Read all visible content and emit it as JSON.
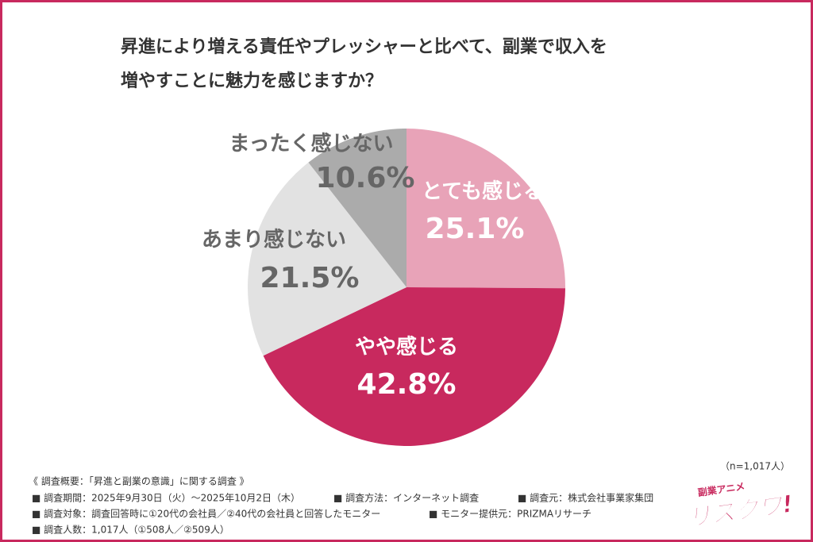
{
  "chart_data": {
    "type": "pie",
    "title_lines": [
      "昇進により増える責任やプレッシャーと比べて、副業で収入を",
      "増やすことに魅力を感じますか？"
    ],
    "categories": [
      "とても感じる",
      "やや感じる",
      "あまり感じない",
      "まったく感じない"
    ],
    "values": [
      25.1,
      42.8,
      21.5,
      10.6
    ],
    "value_labels": [
      "25.1%",
      "42.8%",
      "21.5%",
      "10.6%"
    ],
    "colors": [
      "#e8a3b8",
      "#c8295e",
      "#e2e2e2",
      "#ababab"
    ],
    "label_colors": [
      "#ffffff",
      "#ffffff",
      "#666666",
      "#666666"
    ],
    "sample_note": "（n=1,017人）"
  },
  "footer": {
    "heading": "《 調査概要：「昇進と副業の意識」に関する調査 》",
    "rows": [
      [
        "■ 調査期間：2025年9月30日（火）～2025年10月2日（木）",
        "■ 調査方法：インターネット調査",
        "■ 調査元：株式会社事業家集団"
      ],
      [
        "■ 調査対象：調査回答時に①20代の会社員／②40代の会社員と回答したモニター",
        "■ モニター提供元：PRIZMAリサーチ"
      ],
      [
        "■ 調査人数：1,017人（①508人／②509人）"
      ]
    ]
  },
  "logo": {
    "top": "副業アニメ",
    "main": "リスクワ!"
  }
}
